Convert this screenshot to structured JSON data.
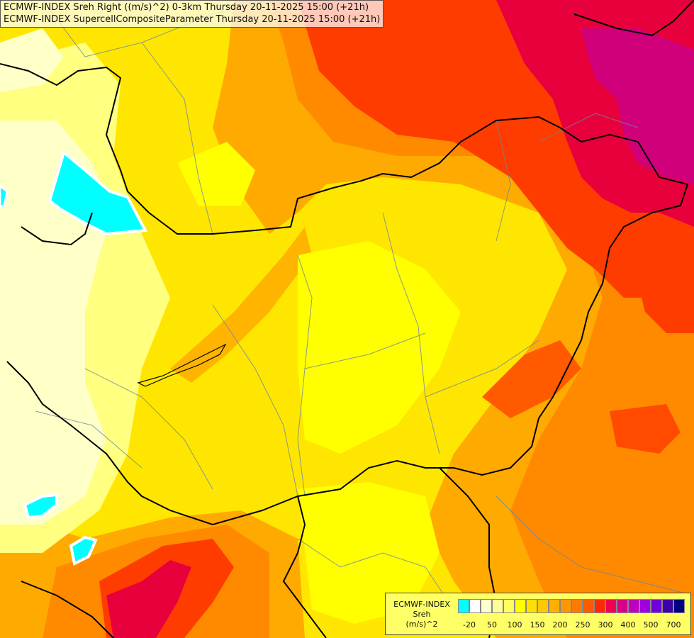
{
  "header": {
    "line1": "ECMWF-INDEX Sreh Right ((m/s)^2) 0-3km Thursday 20-11-2025 15:00 (+21h)",
    "line2": "ECMWF-INDEX SupercellCompositeParameter Thursday 20-11-2025 15:00 (+21h)"
  },
  "legend": {
    "line1": "ECMWF-INDEX",
    "line2": "Sreh",
    "line3": "(m/s)^2",
    "ticks": [
      "-20",
      "50",
      "100",
      "150",
      "200",
      "250",
      "300",
      "400",
      "500",
      "700"
    ],
    "colors": [
      "#00ffff",
      "#ffffff",
      "#ffffd0",
      "#ffff9a",
      "#ffff60",
      "#ffff00",
      "#ffe000",
      "#ffc800",
      "#ffb000",
      "#ff9600",
      "#ff7a00",
      "#ff5a00",
      "#ff2800",
      "#f00050",
      "#d8008a",
      "#c000c0",
      "#a000e0",
      "#7000d8",
      "#4000a8",
      "#000080"
    ]
  },
  "map": {
    "colors": {
      "cyan": "#00ffff",
      "pale": "#ffffc8",
      "lightyellow": "#ffff80",
      "yellow": "#ffff00",
      "gold": "#ffd200",
      "orange": "#ffaa00",
      "darkorange": "#ff7f00",
      "red": "#ff3c00",
      "crimson": "#e8003c",
      "magenta": "#d0007a"
    }
  }
}
